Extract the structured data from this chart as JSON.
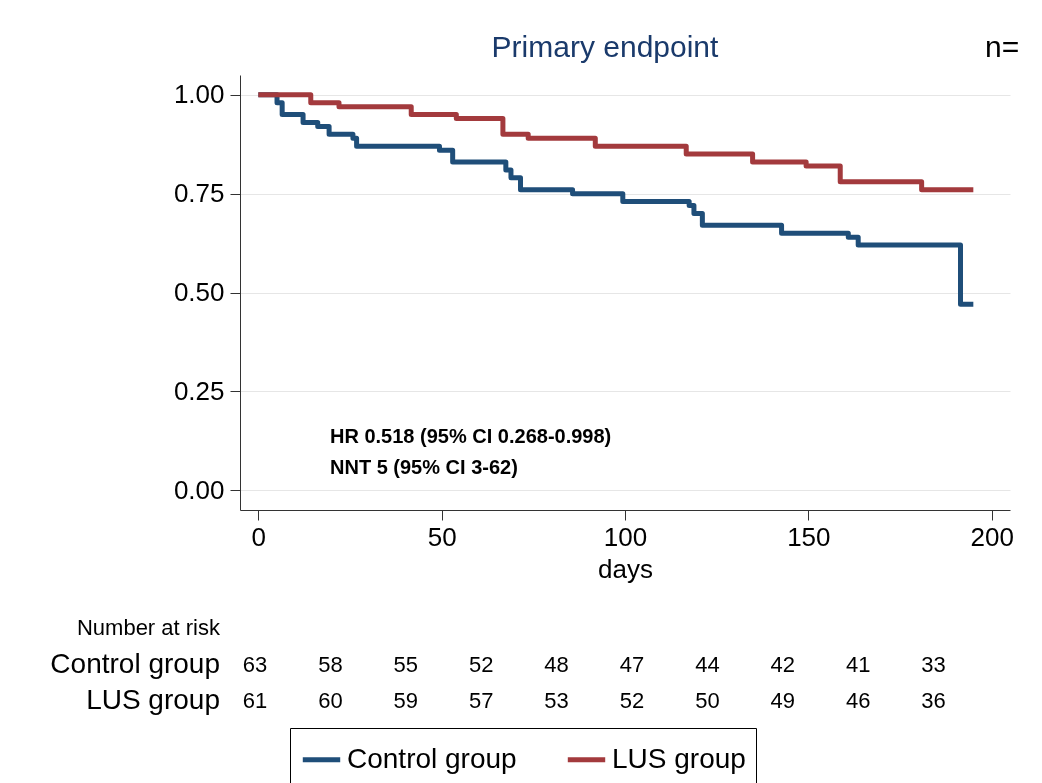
{
  "chart_data": {
    "type": "step",
    "title": "Primary endpoint",
    "xlabel": "days",
    "xlim": [
      -5,
      205
    ],
    "xticks": [
      0,
      50,
      100,
      150,
      200
    ],
    "ylim": [
      -0.05,
      1.05
    ],
    "yticks": [
      {
        "value": 0,
        "label": "0.00"
      },
      {
        "value": 0.25,
        "label": "0.25"
      },
      {
        "value": 0.5,
        "label": "0.50"
      },
      {
        "value": 0.75,
        "label": "0.75"
      },
      {
        "value": 1,
        "label": "1.00"
      }
    ],
    "grid": "y",
    "legend": "bottom",
    "line_style": "solid",
    "series": [
      {
        "name": "Control group",
        "color": "#1f4e79",
        "x": [
          0,
          5.1,
          6.5,
          12.2,
          16.2,
          19.3,
          25.8,
          26.8,
          49.4,
          53,
          67.5,
          68.9,
          71.5,
          85.7,
          99.4,
          117.5,
          118.8,
          121.1,
          142.7,
          160.9,
          163.6,
          191.5,
          195
        ],
        "values": [
          1,
          0.98,
          0.95,
          0.93,
          0.92,
          0.9,
          0.89,
          0.87,
          0.86,
          0.83,
          0.81,
          0.79,
          0.76,
          0.75,
          0.73,
          0.72,
          0.7,
          0.67,
          0.65,
          0.64,
          0.62,
          0.47,
          0.47
        ]
      },
      {
        "name": "LUS group",
        "color": "#a33a3d",
        "x": [
          0,
          14.3,
          22,
          41.7,
          54,
          66.7,
          73.6,
          91.9,
          116.7,
          134.8,
          149.4,
          158.7,
          180.9,
          195
        ],
        "values": [
          1,
          0.98,
          0.97,
          0.95,
          0.94,
          0.9,
          0.89,
          0.87,
          0.85,
          0.83,
          0.82,
          0.78,
          0.76,
          0.76
        ]
      }
    ],
    "annotations": [
      "HR 0.518 (95% CI 0.268-0.998)",
      "NNT 5 (95% CI 3-62)",
      "n=",
      "Number at risk",
      "Control group",
      "63",
      "58",
      "55",
      "52",
      "48",
      "47",
      "44",
      "42",
      "41",
      "33",
      "LUS group",
      "61",
      "60",
      "59",
      "57",
      "53",
      "52",
      "50",
      "49",
      "46",
      "36"
    ]
  }
}
